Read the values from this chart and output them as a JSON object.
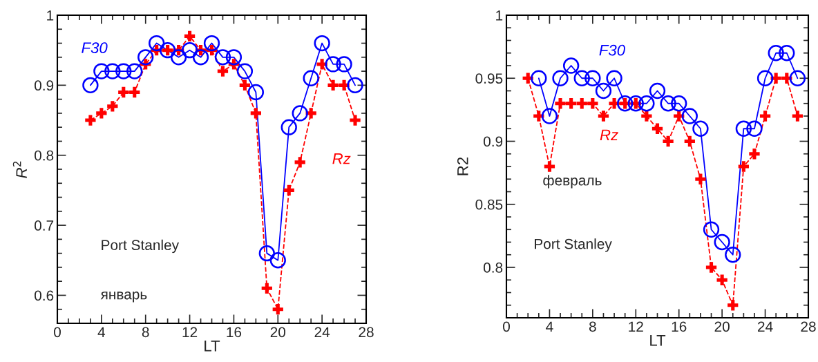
{
  "chart_data": [
    {
      "type": "line",
      "xlabel": "LT",
      "ylabel": "R$^{2}$",
      "xlim": [
        0,
        28
      ],
      "xticks": [
        0,
        4,
        8,
        12,
        16,
        20,
        24,
        28
      ],
      "ylim": [
        0.56,
        1.0
      ],
      "yticks": [
        0.6,
        0.7,
        0.8,
        0.9,
        1
      ],
      "grid": false,
      "annotations": [
        "Port Stanley",
        "январь"
      ],
      "series": [
        {
          "name": "F30",
          "color": "#0000ff",
          "marker": "circle",
          "line_style": "solid",
          "x": [
            3,
            4,
            5,
            6,
            7,
            8,
            9,
            10,
            11,
            12,
            13,
            14,
            15,
            16,
            17,
            18,
            19,
            20,
            21,
            22,
            23,
            24,
            25,
            26,
            27
          ],
          "values": [
            0.9,
            0.92,
            0.92,
            0.92,
            0.92,
            0.94,
            0.96,
            0.95,
            0.94,
            0.95,
            0.94,
            0.96,
            0.94,
            0.94,
            0.92,
            0.89,
            0.66,
            0.65,
            0.84,
            0.86,
            0.91,
            0.96,
            0.93,
            0.93,
            0.9
          ]
        },
        {
          "name": "Rz",
          "color": "#ff0000",
          "marker": "cross",
          "line_style": "dashed",
          "x": [
            3,
            4,
            5,
            6,
            7,
            8,
            9,
            10,
            11,
            12,
            13,
            14,
            15,
            16,
            17,
            18,
            19,
            20,
            21,
            22,
            23,
            24,
            25,
            26,
            27
          ],
          "values": [
            0.85,
            0.86,
            0.87,
            0.89,
            0.89,
            0.93,
            0.95,
            0.95,
            0.95,
            0.97,
            0.95,
            0.95,
            0.92,
            0.93,
            0.9,
            0.86,
            0.61,
            0.58,
            0.75,
            0.79,
            0.86,
            0.93,
            0.9,
            0.9,
            0.85
          ]
        }
      ]
    },
    {
      "type": "line",
      "xlabel": "LT",
      "ylabel": "R2",
      "xlim": [
        0,
        28
      ],
      "xticks": [
        0,
        4,
        8,
        12,
        16,
        20,
        24,
        28
      ],
      "ylim": [
        0.76,
        1.0
      ],
      "yticks": [
        0.8,
        0.85,
        0.9,
        0.95,
        1
      ],
      "grid": false,
      "annotations": [
        "февраль",
        "Port Stanley"
      ],
      "series": [
        {
          "name": "F30",
          "color": "#0000ff",
          "marker": "circle",
          "line_style": "solid",
          "x": [
            3,
            4,
            5,
            6,
            7,
            8,
            9,
            10,
            11,
            12,
            13,
            14,
            15,
            16,
            17,
            18,
            19,
            20,
            21,
            22,
            23,
            24,
            25,
            26,
            27
          ],
          "values": [
            0.95,
            0.92,
            0.95,
            0.96,
            0.95,
            0.95,
            0.94,
            0.95,
            0.93,
            0.93,
            0.93,
            0.94,
            0.93,
            0.93,
            0.92,
            0.91,
            0.83,
            0.82,
            0.81,
            0.91,
            0.91,
            0.95,
            0.97,
            0.97,
            0.95
          ]
        },
        {
          "name": "Rz",
          "color": "#ff0000",
          "marker": "cross",
          "line_style": "dashed",
          "x": [
            2,
            3,
            4,
            5,
            6,
            7,
            8,
            9,
            10,
            11,
            12,
            13,
            14,
            15,
            16,
            17,
            18,
            19,
            20,
            21,
            22,
            23,
            24,
            25,
            26,
            27
          ],
          "values": [
            0.95,
            0.92,
            0.88,
            0.93,
            0.93,
            0.93,
            0.93,
            0.92,
            0.93,
            0.93,
            0.93,
            0.92,
            0.91,
            0.9,
            0.92,
            0.9,
            0.87,
            0.8,
            0.79,
            0.77,
            0.88,
            0.89,
            0.92,
            0.95,
            0.95,
            0.92
          ]
        }
      ]
    }
  ]
}
